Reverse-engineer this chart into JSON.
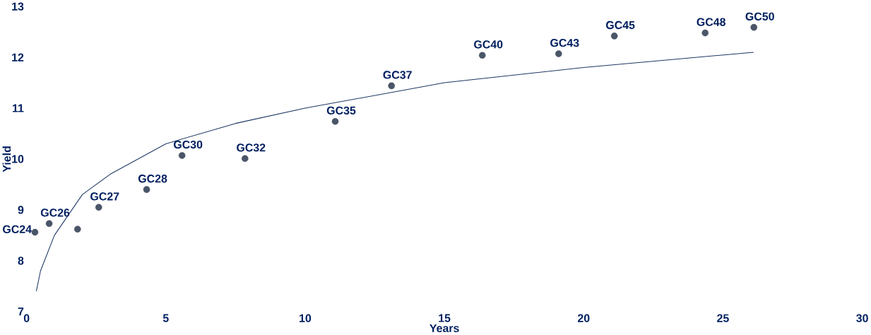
{
  "chart_data": {
    "type": "scatter",
    "xlabel": "Years",
    "ylabel": "Yield",
    "xlim": [
      0,
      30
    ],
    "ylim": [
      7,
      13
    ],
    "xticks": [
      0,
      5,
      10,
      15,
      20,
      25,
      30
    ],
    "yticks": [
      7,
      8,
      9,
      10,
      11,
      12,
      13
    ],
    "grid": false,
    "series": [
      {
        "color": "#4a5568",
        "marker": "circle",
        "x": [
          0.3,
          0.81,
          1.83,
          2.59,
          4.31,
          5.58,
          7.84,
          11.08,
          13.1,
          16.36,
          19.1,
          21.1,
          24.36,
          26.11
        ],
        "values": [
          8.56,
          8.73,
          8.62,
          9.05,
          9.4,
          10.07,
          10.01,
          10.74,
          11.44,
          12.04,
          12.07,
          12.42,
          12.48,
          12.59
        ]
      },
      {
        "type": "line",
        "color": "#1f3864",
        "line_style": "solid",
        "marker": "none",
        "x": [
          0.35,
          0.5,
          1,
          2,
          3,
          5,
          7.5,
          10,
          15,
          20,
          26.1
        ],
        "values": [
          7.4,
          7.8,
          8.5,
          9.3,
          9.7,
          10.3,
          10.7,
          11.0,
          11.5,
          11.8,
          12.1
        ]
      }
    ],
    "annotations": [
      {
        "text": "GC24",
        "x": 0.3,
        "y": 8.56
      },
      {
        "text": "GC26",
        "x": 0.81,
        "y": 8.73
      },
      {
        "text": "GC27",
        "x": 2.59,
        "y": 9.05
      },
      {
        "text": "GC28",
        "x": 4.31,
        "y": 9.4
      },
      {
        "text": "GC30",
        "x": 5.58,
        "y": 10.07
      },
      {
        "text": "GC32",
        "x": 7.84,
        "y": 10.01
      },
      {
        "text": "GC35",
        "x": 11.08,
        "y": 10.74
      },
      {
        "text": "GC37",
        "x": 13.1,
        "y": 11.44
      },
      {
        "text": "GC40",
        "x": 16.36,
        "y": 12.04
      },
      {
        "text": "GC43",
        "x": 19.1,
        "y": 12.07
      },
      {
        "text": "GC45",
        "x": 21.1,
        "y": 12.42
      },
      {
        "text": "GC48",
        "x": 24.36,
        "y": 12.48
      },
      {
        "text": "GC50",
        "x": 26.11,
        "y": 12.59
      }
    ]
  }
}
